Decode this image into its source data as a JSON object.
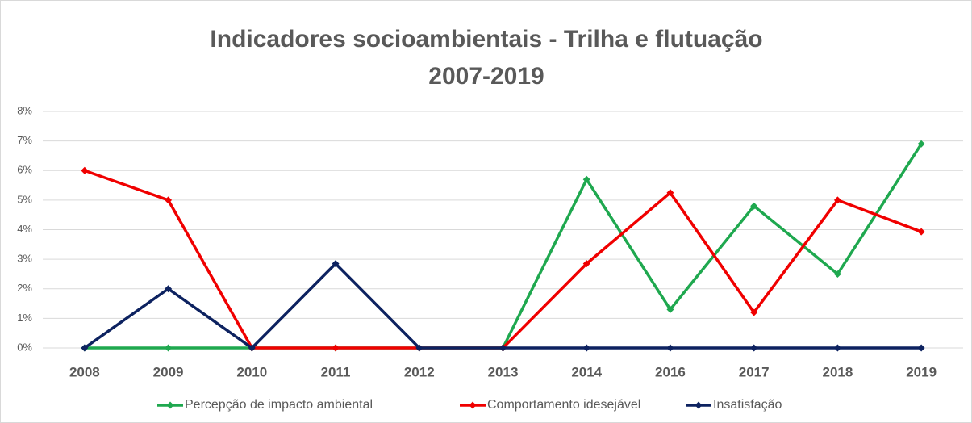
{
  "chart_data": {
    "type": "line",
    "title": "Indicadores socioambientais - Trilha e flutuação",
    "subtitle": "2007-2019",
    "categories": [
      "2008",
      "2009",
      "2010",
      "2011",
      "2012",
      "2013",
      "2014",
      "2016",
      "2017",
      "2018",
      "2019"
    ],
    "series": [
      {
        "name": "Percepção de impacto ambiental",
        "color": "#1fa84f",
        "values": [
          0,
          0,
          0,
          0,
          0,
          0,
          5.7,
          1.3,
          4.8,
          2.5,
          6.9
        ]
      },
      {
        "name": "Comportamento idesejável",
        "color": "#f00000",
        "values": [
          6,
          5,
          0,
          0,
          0,
          0,
          2.85,
          5.25,
          1.2,
          5,
          3.93
        ]
      },
      {
        "name": "Insatisfação",
        "color": "#0d2260",
        "values": [
          0,
          2,
          0,
          2.85,
          0,
          0,
          0,
          0,
          0,
          0,
          0
        ]
      }
    ],
    "ylim": [
      0,
      8
    ],
    "yticks": [
      {
        "value": 0,
        "label": "0%"
      },
      {
        "value": 1,
        "label": "1%"
      },
      {
        "value": 2,
        "label": "2%"
      },
      {
        "value": 3,
        "label": "3%"
      },
      {
        "value": 4,
        "label": "4%"
      },
      {
        "value": 5,
        "label": "5%"
      },
      {
        "value": 6,
        "label": "6%"
      },
      {
        "value": 7,
        "label": "7%"
      },
      {
        "value": 8,
        "label": "8%"
      }
    ],
    "grid": true,
    "legend": "bottom"
  }
}
